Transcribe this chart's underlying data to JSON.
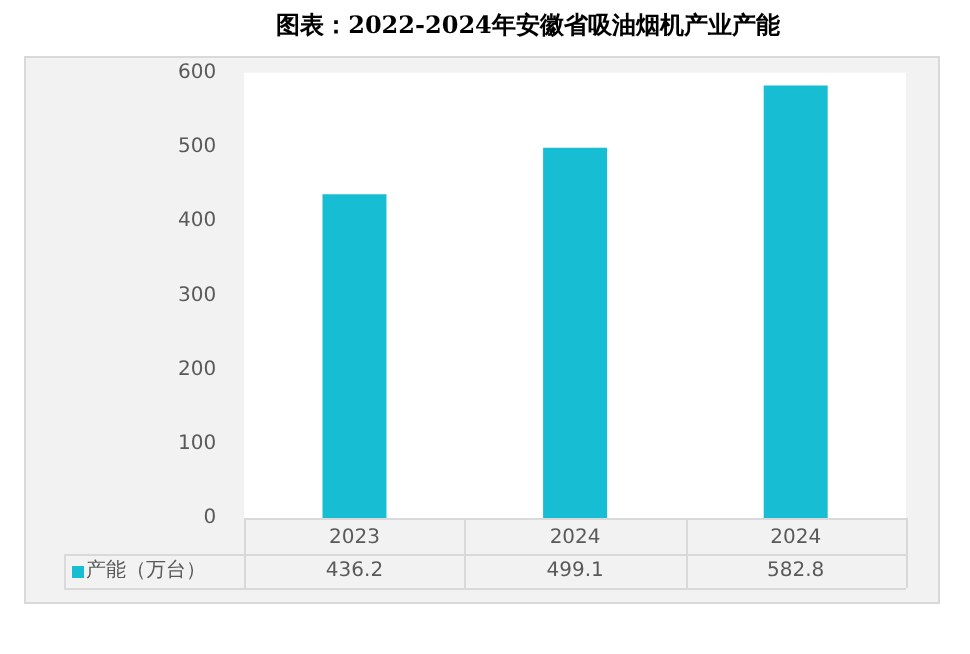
{
  "chart_data": {
    "type": "bar",
    "title": "图表：2022-2024年安徽省吸油烟机产业产能",
    "categories": [
      "2023",
      "2024",
      "2024"
    ],
    "series": [
      {
        "name": "产能（万台）",
        "color": "#17bdd3",
        "values": [
          436.2,
          499.1,
          582.8
        ]
      }
    ],
    "ylim": [
      0,
      600
    ],
    "yticks": [
      0,
      100,
      200,
      300,
      400,
      500,
      600
    ],
    "grid": false,
    "legend": "bottom left",
    "data_labels": true
  }
}
